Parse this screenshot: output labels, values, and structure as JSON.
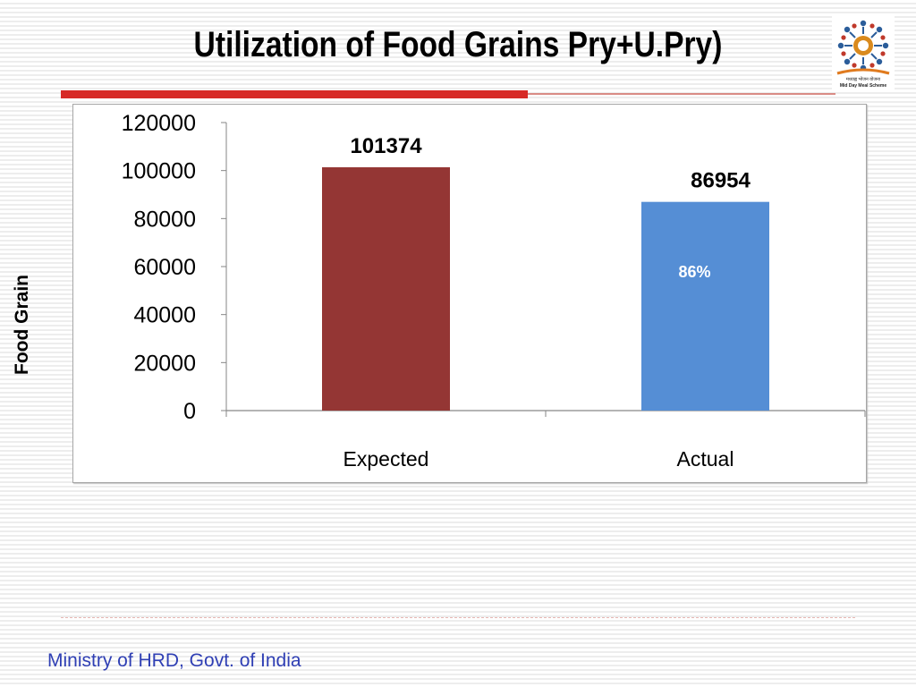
{
  "slide": {
    "title": "Utilization of Food Grains Pry+U.Pry)",
    "footer": "Ministry of HRD, Govt. of India",
    "logo_text_hindi": "मध्याह्न भोजन योजना",
    "logo_text_english": "Mid Day Meal Scheme"
  },
  "colors": {
    "expected_bar": "#943634",
    "actual_bar": "#558ed5",
    "title_rule": "#d72a26",
    "footer_text": "#2f3fb4"
  },
  "chart_data": {
    "type": "bar",
    "title": "",
    "xlabel": "",
    "ylabel": "Food Grain",
    "categories": [
      "Expected",
      "Actual"
    ],
    "values": [
      101374,
      86954
    ],
    "data_labels": [
      "101374",
      "86954"
    ],
    "bar_colors": [
      "#943634",
      "#558ed5"
    ],
    "annotations": [
      {
        "category": "Actual",
        "text": "86%"
      }
    ],
    "ylim": [
      0,
      120000
    ],
    "yticks": [
      0,
      20000,
      40000,
      60000,
      80000,
      100000,
      120000
    ],
    "grid": false,
    "legend": "none"
  }
}
